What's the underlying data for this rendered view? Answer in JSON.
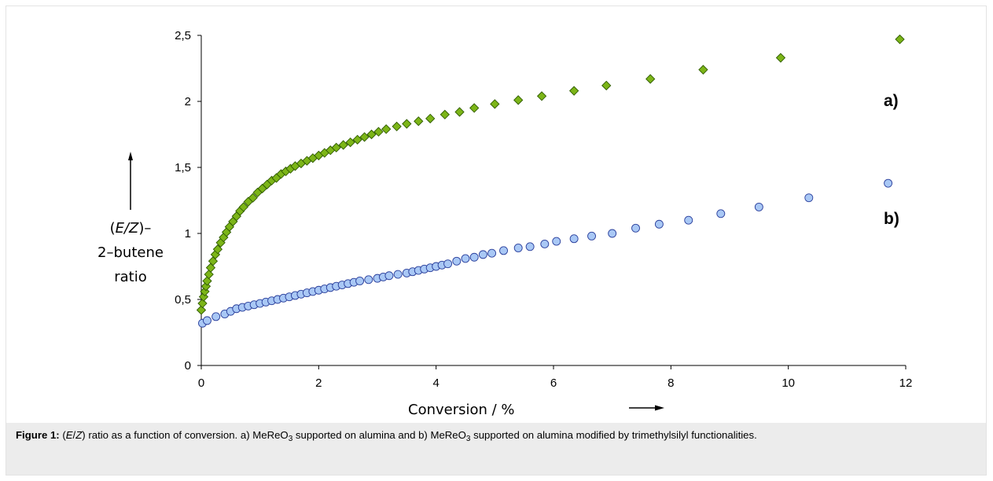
{
  "chart_data": {
    "type": "scatter",
    "xlabel": "Conversion / %",
    "ylabel_lines": [
      "(E/Z)–",
      "2–butene",
      "ratio"
    ],
    "xlim": [
      0,
      12
    ],
    "ylim": [
      0,
      2.5
    ],
    "x_ticks": [
      "0",
      "2",
      "4",
      "6",
      "8",
      "10",
      "12"
    ],
    "y_ticks": [
      "0",
      "0,5",
      "1",
      "1,5",
      "2",
      "2,5"
    ],
    "x_tick_values": [
      0,
      2,
      4,
      6,
      8,
      10,
      12
    ],
    "y_tick_values": [
      0,
      0.5,
      1,
      1.5,
      2,
      2.5
    ],
    "grid": false,
    "series": [
      {
        "label": "a)",
        "marker": "diamond",
        "color": "#7cb518",
        "edge_color": "#2e5a00",
        "x": [
          0.0,
          0.02,
          0.04,
          0.06,
          0.08,
          0.1,
          0.13,
          0.16,
          0.2,
          0.24,
          0.28,
          0.33,
          0.38,
          0.43,
          0.48,
          0.54,
          0.6,
          0.66,
          0.72,
          0.8,
          0.88,
          0.96,
          1.04,
          1.12,
          1.2,
          1.28,
          1.36,
          1.44,
          1.52,
          1.6,
          1.7,
          1.8,
          1.9,
          2.0,
          2.1,
          2.2,
          2.3,
          2.42,
          2.54,
          2.66,
          2.78,
          2.9,
          3.02,
          3.15,
          3.33,
          3.5,
          3.7,
          3.9,
          4.15,
          4.4,
          4.65,
          5.0,
          5.4,
          5.8,
          6.35,
          6.9,
          7.65,
          8.55,
          9.87,
          11.9
        ],
        "y": [
          0.42,
          0.47,
          0.52,
          0.56,
          0.6,
          0.64,
          0.69,
          0.74,
          0.79,
          0.84,
          0.88,
          0.93,
          0.97,
          1.01,
          1.05,
          1.09,
          1.13,
          1.17,
          1.2,
          1.24,
          1.27,
          1.31,
          1.34,
          1.37,
          1.4,
          1.42,
          1.45,
          1.47,
          1.49,
          1.51,
          1.53,
          1.55,
          1.57,
          1.59,
          1.61,
          1.63,
          1.65,
          1.67,
          1.69,
          1.71,
          1.73,
          1.75,
          1.77,
          1.79,
          1.81,
          1.83,
          1.85,
          1.87,
          1.9,
          1.92,
          1.95,
          1.98,
          2.01,
          2.04,
          2.08,
          2.12,
          2.17,
          2.24,
          2.33,
          2.47
        ]
      },
      {
        "label": "b)",
        "marker": "circle",
        "color": "#a9c8f5",
        "edge_color": "#2a3f9c",
        "x": [
          0.02,
          0.1,
          0.25,
          0.4,
          0.5,
          0.6,
          0.7,
          0.8,
          0.9,
          1.0,
          1.1,
          1.2,
          1.3,
          1.4,
          1.5,
          1.6,
          1.7,
          1.8,
          1.9,
          2.0,
          2.1,
          2.2,
          2.3,
          2.4,
          2.5,
          2.6,
          2.7,
          2.85,
          3.0,
          3.1,
          3.2,
          3.35,
          3.5,
          3.6,
          3.7,
          3.8,
          3.9,
          4.0,
          4.1,
          4.2,
          4.35,
          4.5,
          4.65,
          4.8,
          4.95,
          5.15,
          5.4,
          5.6,
          5.85,
          6.05,
          6.35,
          6.65,
          7.0,
          7.4,
          7.8,
          8.3,
          8.85,
          9.5,
          10.35,
          11.7
        ],
        "y": [
          0.32,
          0.34,
          0.37,
          0.39,
          0.41,
          0.43,
          0.44,
          0.45,
          0.46,
          0.47,
          0.48,
          0.49,
          0.5,
          0.51,
          0.52,
          0.53,
          0.54,
          0.55,
          0.56,
          0.57,
          0.58,
          0.59,
          0.6,
          0.61,
          0.62,
          0.63,
          0.64,
          0.65,
          0.66,
          0.67,
          0.68,
          0.69,
          0.7,
          0.71,
          0.72,
          0.73,
          0.74,
          0.75,
          0.76,
          0.77,
          0.79,
          0.81,
          0.82,
          0.84,
          0.85,
          0.87,
          0.89,
          0.9,
          0.92,
          0.94,
          0.96,
          0.98,
          1.0,
          1.04,
          1.07,
          1.1,
          1.15,
          1.2,
          1.27,
          1.38
        ]
      }
    ]
  },
  "caption": {
    "label": "Figure 1:",
    "text_parts": [
      " (",
      "E",
      "/",
      "Z",
      ") ratio as a function of conversion. a) MeReO",
      "3",
      " supported on alumina and b) MeReO",
      "3",
      " supported on alumina modified by trimethylsilyl functionalities."
    ]
  }
}
